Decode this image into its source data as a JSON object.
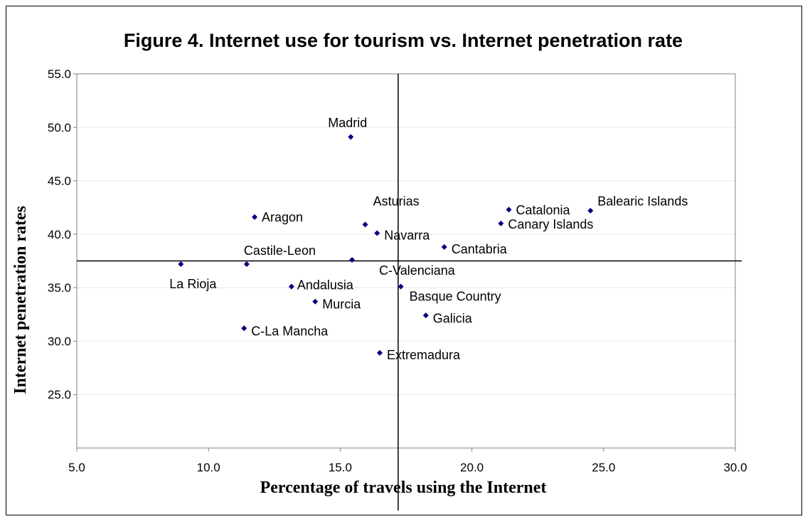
{
  "chart_data": {
    "type": "scatter",
    "title": "Figure 4. Internet use for tourism vs. Internet penetration rate",
    "xlabel": "Percentage of travels using the Internet",
    "ylabel": "Internet penetration rates",
    "xlim": [
      5.0,
      30.0
    ],
    "ylim": [
      20.0,
      55.0
    ],
    "x_ticks": [
      "5.0",
      "10.0",
      "15.0",
      "20.0",
      "25.0",
      "30.0"
    ],
    "y_ticks": [
      "25.0",
      "30.0",
      "35.0",
      "40.0",
      "45.0",
      "50.0",
      "55.0"
    ],
    "reference_lines": {
      "x": 17.2,
      "y": 37.5
    },
    "grid": "horizontal",
    "legend": "none",
    "marker_color": "#00007f",
    "points": [
      {
        "label": "Madrid",
        "x": 15.4,
        "y": 49.1
      },
      {
        "label": "Asturias",
        "x": 15.95,
        "y": 40.9
      },
      {
        "label": "Navarra",
        "x": 16.4,
        "y": 40.1
      },
      {
        "label": "Aragon",
        "x": 11.75,
        "y": 41.6
      },
      {
        "label": "Catalonia",
        "x": 21.4,
        "y": 42.3
      },
      {
        "label": "Balearic Islands",
        "x": 24.5,
        "y": 42.2
      },
      {
        "label": "Canary Islands",
        "x": 21.1,
        "y": 41.0
      },
      {
        "label": "Cantabria",
        "x": 18.95,
        "y": 38.8
      },
      {
        "label": "Castile-Leon",
        "x": 11.45,
        "y": 37.2
      },
      {
        "label": "C-Valenciana",
        "x": 15.45,
        "y": 37.6
      },
      {
        "label": "La Rioja",
        "x": 8.95,
        "y": 37.2
      },
      {
        "label": "Andalusia",
        "x": 13.15,
        "y": 35.1
      },
      {
        "label": "Basque Country",
        "x": 17.3,
        "y": 35.1
      },
      {
        "label": "Murcia",
        "x": 14.05,
        "y": 33.7
      },
      {
        "label": "Galicia",
        "x": 18.25,
        "y": 32.4
      },
      {
        "label": "C-La Mancha",
        "x": 11.35,
        "y": 31.2
      },
      {
        "label": "Extremadura",
        "x": 16.5,
        "y": 28.9
      }
    ]
  }
}
